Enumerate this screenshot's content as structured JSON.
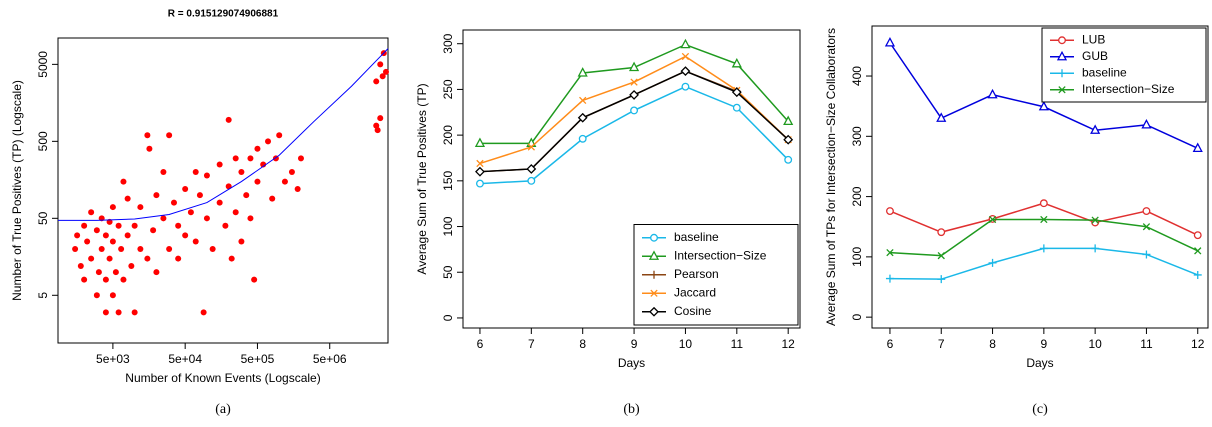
{
  "chart_data": [
    {
      "type": "scatter",
      "title": "R = 0.915129074906881",
      "caption": "(a)",
      "xlabel": "Number of Known Events (Logscale)",
      "ylabel": "Number of True Positives (TP) (Logscale)",
      "xscale": "log",
      "yscale": "log",
      "xlim": [
        870,
        32000000
      ],
      "ylim": [
        1.2,
        11000
      ],
      "xticks": [
        {
          "value": 5000,
          "label": "5e+03"
        },
        {
          "value": 50000,
          "label": "5e+04"
        },
        {
          "value": 500000,
          "label": "5e+05"
        },
        {
          "value": 5000000,
          "label": "5e+06"
        }
      ],
      "yticks": [
        5,
        50,
        500,
        5000
      ],
      "points": {
        "color": "#ff0000",
        "x": [
          1500,
          1600,
          1800,
          2000,
          2000,
          2200,
          2500,
          2500,
          3000,
          3000,
          3200,
          3500,
          3500,
          4000,
          4000,
          4000,
          4500,
          4500,
          5000,
          5000,
          5000,
          5500,
          6000,
          6000,
          6500,
          7000,
          7000,
          8000,
          8000,
          9000,
          10000,
          10000,
          12000,
          12000,
          15000,
          15000,
          16000,
          18000,
          20000,
          20000,
          25000,
          25000,
          30000,
          30000,
          35000,
          40000,
          40000,
          50000,
          50000,
          60000,
          70000,
          70000,
          80000,
          90000,
          100000,
          100000,
          120000,
          150000,
          150000,
          180000,
          200000,
          200000,
          220000,
          250000,
          250000,
          300000,
          300000,
          350000,
          400000,
          400000,
          450000,
          500000,
          500000,
          600000,
          700000,
          800000,
          900000,
          1000000,
          1200000,
          1500000,
          1800000,
          2000000,
          22000000,
          22000000,
          25000000,
          25000000,
          28000000,
          30000000,
          23000000,
          27000000
        ],
        "values": [
          20,
          30,
          12,
          40,
          8,
          25,
          15,
          60,
          5,
          35,
          10,
          20,
          50,
          3,
          8,
          30,
          15,
          45,
          5,
          25,
          70,
          10,
          3,
          40,
          20,
          8,
          150,
          30,
          90,
          12,
          40,
          3,
          20,
          70,
          15,
          600,
          400,
          35,
          100,
          10,
          50,
          200,
          20,
          600,
          80,
          40,
          15,
          120,
          30,
          60,
          25,
          200,
          100,
          3,
          50,
          180,
          20,
          80,
          250,
          40,
          130,
          950,
          15,
          300,
          60,
          200,
          25,
          100,
          50,
          300,
          8,
          150,
          400,
          250,
          500,
          90,
          300,
          600,
          150,
          200,
          120,
          300,
          3000,
          800,
          1000,
          5000,
          7000,
          4000,
          700,
          3500
        ]
      },
      "fit_line": {
        "color": "#0000ff",
        "x": [
          870,
          3000,
          10000,
          30000,
          100000,
          300000,
          1000000,
          3000000,
          10000000,
          32000000
        ],
        "values": [
          47,
          47,
          49,
          56,
          80,
          150,
          330,
          900,
          2600,
          8000
        ]
      }
    },
    {
      "type": "line",
      "caption": "(b)",
      "xlabel": "Days",
      "ylabel": "Average Sum of True Positives (TP)",
      "xlim": [
        5.67,
        12.23
      ],
      "ylim": [
        -11,
        315
      ],
      "xticks": [
        6,
        7,
        8,
        9,
        10,
        11,
        12
      ],
      "yticks": [
        0,
        50,
        100,
        150,
        200,
        250,
        300
      ],
      "legend": "bottom-right",
      "x": [
        6,
        7,
        8,
        9,
        10,
        11,
        12
      ],
      "series": [
        {
          "name": "baseline",
          "color": "#1ab8e8",
          "marker": "circle",
          "values": [
            147,
            150,
            196,
            227,
            253,
            230,
            173
          ]
        },
        {
          "name": "Intersection−Size",
          "color": "#1f9a1f",
          "marker": "triangle",
          "values": [
            191,
            191,
            268,
            274,
            299,
            278,
            215
          ]
        },
        {
          "name": "Pearson",
          "color": "#8b4513",
          "marker": "plus",
          "values": [
            160,
            163,
            219,
            244,
            270,
            248,
            195
          ]
        },
        {
          "name": "Jaccard",
          "color": "#ff8c1a",
          "marker": "x",
          "values": [
            169,
            187,
            238,
            258,
            286,
            249,
            195
          ]
        },
        {
          "name": "Cosine",
          "color": "#000000",
          "marker": "diamond",
          "values": [
            160,
            163,
            219,
            244,
            270,
            247,
            195
          ]
        }
      ]
    },
    {
      "type": "line",
      "caption": "(c)",
      "xlabel": "Days",
      "ylabel": "Average Sum of TPs for Intersection−Size Collaborators",
      "xlim": [
        5.65,
        12.2
      ],
      "ylim": [
        -18,
        483
      ],
      "xticks": [
        6,
        7,
        8,
        9,
        10,
        11,
        12
      ],
      "yticks": [
        0,
        100,
        200,
        300,
        400
      ],
      "legend": "top-right",
      "x": [
        6,
        7,
        8,
        9,
        10,
        11,
        12
      ],
      "series": [
        {
          "name": "LUB",
          "color": "#e03030",
          "marker": "circle",
          "values": [
            176,
            141,
            163,
            189,
            157,
            176,
            136
          ]
        },
        {
          "name": "GUB",
          "color": "#0000dd",
          "marker": "triangle",
          "values": [
            455,
            330,
            369,
            349,
            310,
            319,
            280
          ]
        },
        {
          "name": "baseline",
          "color": "#1ab8e8",
          "marker": "plus",
          "values": [
            64,
            63,
            90,
            114,
            114,
            104,
            70
          ]
        },
        {
          "name": "Intersection−Size",
          "color": "#1f9a1f",
          "marker": "x",
          "values": [
            107,
            102,
            162,
            162,
            161,
            150,
            110
          ]
        }
      ]
    }
  ]
}
